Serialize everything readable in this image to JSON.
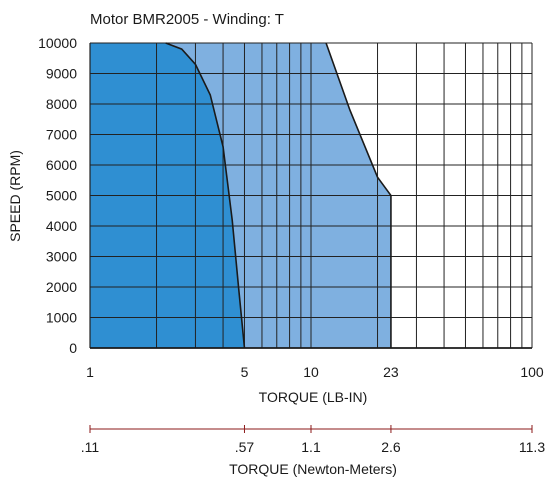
{
  "chart_data": {
    "type": "area",
    "title": "Motor BMR2005 - Winding: T",
    "xlabel": "TORQUE (LB-IN)",
    "ylabel": "SPEED (RPM)",
    "x_scale": "log",
    "xlim": [
      1,
      100
    ],
    "ylim": [
      0,
      10000
    ],
    "y_ticks": [
      0,
      1000,
      2000,
      3000,
      4000,
      5000,
      6000,
      7000,
      8000,
      9000,
      10000
    ],
    "x_tick_labels": [
      {
        "value": 1,
        "label": "1"
      },
      {
        "value": 5,
        "label": "5"
      },
      {
        "value": 10,
        "label": "10"
      },
      {
        "value": 23,
        "label": "23"
      },
      {
        "value": 100,
        "label": "100"
      }
    ],
    "x_grid": [
      2,
      3,
      4,
      5,
      6,
      7,
      8,
      9,
      10,
      20,
      30,
      40,
      50,
      60,
      70,
      80,
      90
    ],
    "y_grid": true,
    "colors": {
      "continuous": "#2f8fd2",
      "intermittent": "#7fb0e0",
      "outline": "#1a1a1a",
      "grid": "#222222",
      "secondary_axis": "#8b1a1a"
    },
    "series": [
      {
        "points": [
          [
            1,
            10000
          ],
          [
            2.2,
            10000
          ],
          [
            2.6,
            9800
          ],
          [
            3,
            9300
          ],
          [
            3.5,
            8300
          ],
          [
            4,
            6600
          ],
          [
            4.4,
            4200
          ],
          [
            4.7,
            2000
          ],
          [
            5,
            0
          ],
          [
            1,
            0
          ]
        ]
      },
      {
        "points": [
          [
            1,
            10000
          ],
          [
            11.7,
            10000
          ],
          [
            15,
            7800
          ],
          [
            20,
            5600
          ],
          [
            23,
            5000
          ],
          [
            23,
            0
          ],
          [
            1,
            0
          ]
        ]
      }
    ],
    "secondary_axis": {
      "label": "TORQUE (Newton-Meters)",
      "ticks": [
        {
          "label": ".11",
          "at_lbin": 1
        },
        {
          "label": ".57",
          "at_lbin": 5
        },
        {
          "label": "1.1",
          "at_lbin": 10
        },
        {
          "label": "2.6",
          "at_lbin": 23
        },
        {
          "label": "11.3",
          "at_lbin": 100
        }
      ]
    }
  }
}
